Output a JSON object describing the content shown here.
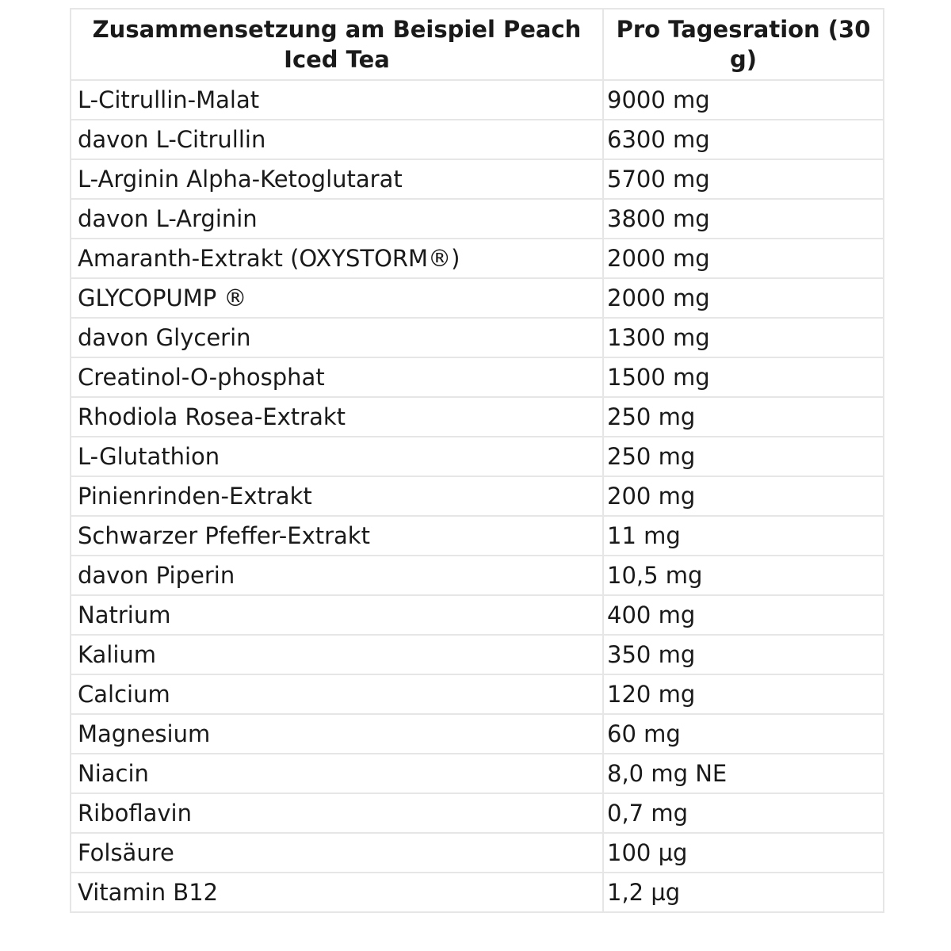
{
  "table": {
    "headers": [
      "Zusammensetzung am Beispiel Peach Iced Tea",
      "Pro Tagesration (30 g)"
    ],
    "rows": [
      [
        "L-Citrullin-Malat",
        "9000 mg"
      ],
      [
        "davon L-Citrullin",
        "6300 mg"
      ],
      [
        "L-Arginin Alpha-Ketoglutarat",
        "5700 mg"
      ],
      [
        "davon L-Arginin",
        "3800 mg"
      ],
      [
        "Amaranth-Extrakt (OXYSTORM®)",
        "2000 mg"
      ],
      [
        "GLYCOPUMP ®",
        "2000 mg"
      ],
      [
        "davon Glycerin",
        "1300 mg"
      ],
      [
        "Creatinol-O-phosphat",
        "1500 mg"
      ],
      [
        "Rhodiola Rosea-Extrakt",
        "250 mg"
      ],
      [
        "L-Glutathion",
        "250 mg"
      ],
      [
        "Pinienrinden-Extrakt",
        "200 mg"
      ],
      [
        "Schwarzer Pfeffer-Extrakt",
        "11 mg"
      ],
      [
        "davon Piperin",
        "10,5 mg"
      ],
      [
        "Natrium",
        "400 mg"
      ],
      [
        "Kalium",
        "350 mg"
      ],
      [
        "Calcium",
        "120 mg"
      ],
      [
        "Magnesium",
        "60 mg"
      ],
      [
        "Niacin",
        "8,0 mg NE"
      ],
      [
        "Riboflavin",
        "0,7 mg"
      ],
      [
        "Folsäure",
        "100 µg"
      ],
      [
        "Vitamin B12",
        "1,2 µg"
      ]
    ]
  }
}
